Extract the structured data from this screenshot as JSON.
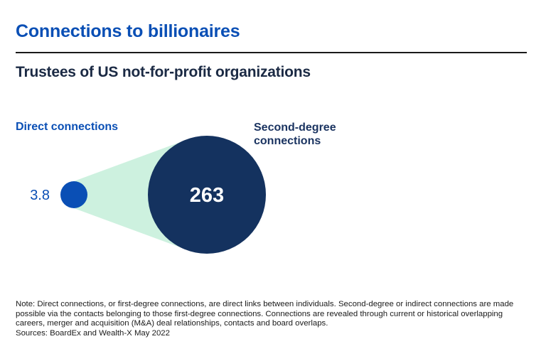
{
  "title": "Connections to billionaires",
  "subtitle": "Trustees of US not-for-profit organizations",
  "chart_data": {
    "type": "bubble",
    "categories": [
      "Direct connections",
      "Second-degree connections"
    ],
    "values": [
      3.8,
      263
    ],
    "value_labels": [
      "3.8",
      "263"
    ],
    "colors": {
      "direct": "#0a4fb5",
      "second": "#14325f",
      "connector": "#cdf1df",
      "direct_label": "#0a4fb5",
      "second_label_text": "#ffffff"
    }
  },
  "labels": {
    "direct": "Direct connections",
    "second_line1": "Second-degree",
    "second_line2": "connections"
  },
  "note": {
    "text": "Note: Direct connections, or first-degree connections, are direct links between individuals. Second-degree or indirect connections are made possible via the contacts belonging to those first-degree connections. Connections are revealed through current or historical overlapping careers, merger and acquisition (M&A) deal relationships, contacts and board overlaps.",
    "sources": "Sources: BoardEx and Wealth-X May 2022"
  }
}
